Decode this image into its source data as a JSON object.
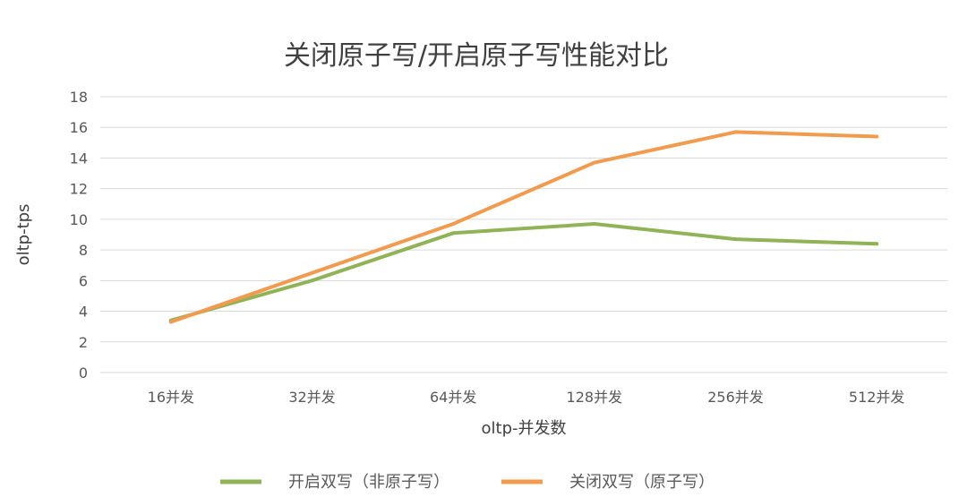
{
  "chart_data": {
    "type": "line",
    "title": "关闭原子写/开启原子写性能对比",
    "xlabel": "oltp-并发数",
    "ylabel": "oltp-tps",
    "categories": [
      "16并发",
      "32并发",
      "64并发",
      "128并发",
      "256并发",
      "512并发"
    ],
    "ylim": [
      0,
      18
    ],
    "yticks": [
      0,
      2,
      4,
      6,
      8,
      10,
      12,
      14,
      16,
      18
    ],
    "grid": true,
    "legend_position": "bottom",
    "series": [
      {
        "name": "开启双写（非原子写）",
        "color": "#8FB356",
        "values": [
          3.4,
          6.0,
          9.1,
          9.7,
          8.7,
          8.4
        ]
      },
      {
        "name": "关闭双写（原子写）",
        "color": "#F29B4F",
        "values": [
          3.3,
          6.5,
          9.7,
          13.7,
          15.7,
          15.4
        ]
      }
    ]
  }
}
